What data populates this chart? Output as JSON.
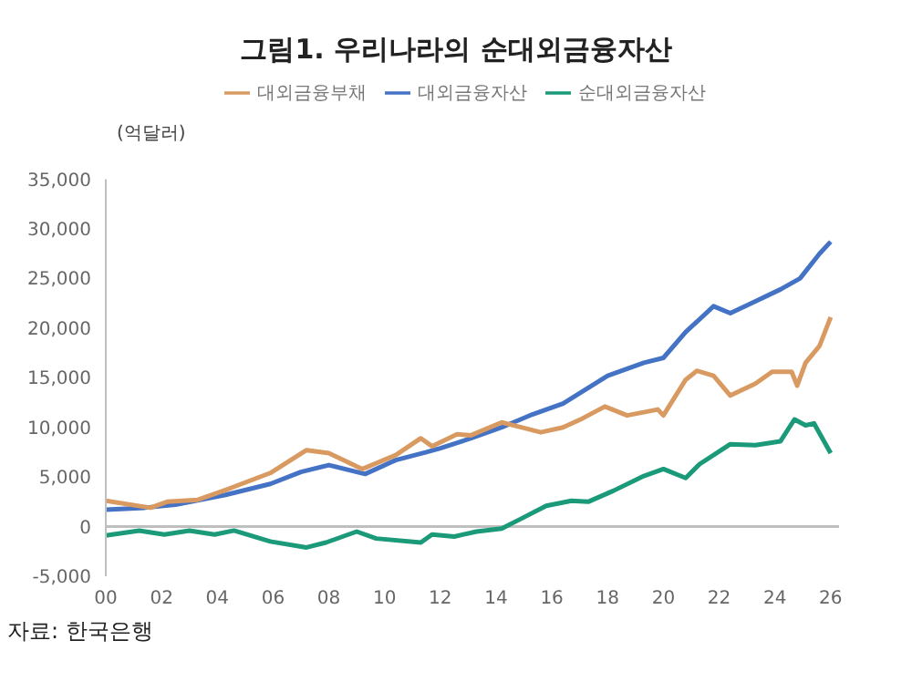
{
  "chart_data": {
    "type": "line",
    "title": "그림1. 우리나라의  순대외금융자산",
    "ylabel": "(억달러)",
    "annotations": [
      "자료: 한국은행"
    ],
    "legend": "top",
    "marker": "none",
    "line_style": "solid",
    "xlim": [
      2000,
      2026.3
    ],
    "xticks": [
      {
        "value": 2000,
        "label": "00"
      },
      {
        "value": 2002,
        "label": "02"
      },
      {
        "value": 2004,
        "label": "04"
      },
      {
        "value": 2006,
        "label": "06"
      },
      {
        "value": 2008,
        "label": "08"
      },
      {
        "value": 2010,
        "label": "10"
      },
      {
        "value": 2012,
        "label": "12"
      },
      {
        "value": 2014,
        "label": "14"
      },
      {
        "value": 2016,
        "label": "16"
      },
      {
        "value": 2018,
        "label": "18"
      },
      {
        "value": 2020,
        "label": "20"
      },
      {
        "value": 2022,
        "label": "22"
      },
      {
        "value": 2024,
        "label": "24"
      },
      {
        "value": 2026,
        "label": "26"
      }
    ],
    "ylim": [
      -5000,
      35000
    ],
    "yticks": [
      {
        "value": -5000,
        "label": "-5,000"
      },
      {
        "value": 0,
        "label": "0"
      },
      {
        "value": 5000,
        "label": "5,000"
      },
      {
        "value": 10000,
        "label": "10,000"
      },
      {
        "value": 15000,
        "label": "15,000"
      },
      {
        "value": 20000,
        "label": "20,000"
      },
      {
        "value": 25000,
        "label": "25,000"
      },
      {
        "value": 30000,
        "label": "30,000"
      },
      {
        "value": 35000,
        "label": "35,000"
      }
    ],
    "ref_lines": [
      {
        "axis": "y",
        "value": 0,
        "color": "#bfbfbf"
      }
    ],
    "series": [
      {
        "name": "순대외금융자산",
        "color": "#1a9a78",
        "x": [
          2000,
          2001.2,
          2002.1,
          2003,
          2003.9,
          2004.6,
          2005.9,
          2007.2,
          2007.9,
          2009,
          2009.7,
          2011.3,
          2011.7,
          2012.5,
          2013.3,
          2014.2,
          2014.9,
          2015.8,
          2016.7,
          2017.3,
          2018.2,
          2019.3,
          2020,
          2020.8,
          2021.3,
          2022.4,
          2023.3,
          2024.2,
          2024.7,
          2025.1,
          2025.4,
          2026
        ],
        "values": [
          -900,
          -400,
          -800,
          -400,
          -800,
          -400,
          -1500,
          -2100,
          -1600,
          -500,
          -1200,
          -1600,
          -800,
          -1000,
          -500,
          -200,
          800,
          2100,
          2600,
          2500,
          3600,
          5100,
          5800,
          4900,
          6300,
          8300,
          8200,
          8600,
          10800,
          10200,
          10400,
          7400
        ]
      },
      {
        "name": "대외금융자산",
        "color": "#4472c4",
        "x": [
          2000,
          2001.4,
          2002.5,
          2004.3,
          2005.9,
          2007,
          2008,
          2009.3,
          2010.4,
          2011.5,
          2012,
          2013.1,
          2014.2,
          2015.3,
          2016.4,
          2018,
          2019.3,
          2020,
          2020.8,
          2021.8,
          2022.4,
          2023.3,
          2024.2,
          2024.9,
          2025.6,
          2026
        ],
        "values": [
          1700,
          1900,
          2200,
          3200,
          4300,
          5500,
          6200,
          5300,
          6700,
          7500,
          7900,
          8900,
          10000,
          11300,
          12400,
          15200,
          16500,
          17000,
          19600,
          22200,
          21500,
          22700,
          23900,
          25000,
          27500,
          28700
        ]
      },
      {
        "name": "대외금융부채",
        "color": "#d99a62",
        "x": [
          2000,
          2001.6,
          2002.2,
          2003.3,
          2004.3,
          2005.9,
          2007.2,
          2008,
          2009.2,
          2010.4,
          2011.3,
          2011.7,
          2012.6,
          2013.1,
          2014.2,
          2014.9,
          2015.6,
          2016.4,
          2017.1,
          2017.9,
          2018.7,
          2019.8,
          2020,
          2020.8,
          2021.2,
          2021.8,
          2022.4,
          2023.3,
          2023.9,
          2024.6,
          2024.8,
          2025.1,
          2025.6,
          2026
        ],
        "values": [
          2600,
          1900,
          2500,
          2700,
          3700,
          5400,
          7700,
          7400,
          5800,
          7200,
          8900,
          8100,
          9300,
          9200,
          10500,
          10000,
          9500,
          10000,
          10900,
          12100,
          11200,
          11800,
          11200,
          14800,
          15700,
          15200,
          13200,
          14400,
          15600,
          15600,
          14200,
          16500,
          18200,
          21100
        ]
      }
    ]
  }
}
